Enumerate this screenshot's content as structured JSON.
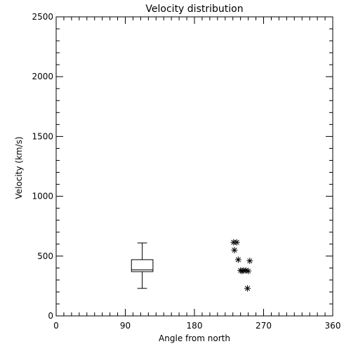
{
  "chart_data": {
    "type": "scatter",
    "title": "Velocity distribution",
    "xlabel": "Angle from north",
    "ylabel": "Velocity (km/s)",
    "xlim": [
      0,
      360
    ],
    "ylim": [
      0,
      2500
    ],
    "x_ticks": [
      0,
      90,
      180,
      270,
      360
    ],
    "y_ticks": [
      0,
      500,
      1000,
      1500,
      2000,
      2500
    ],
    "x_minor_step": 10,
    "y_minor_step": 100,
    "grid": false,
    "legend": "none",
    "color": "#000000",
    "boxplot": {
      "x": 112,
      "half_width_deg": 14,
      "min": 230,
      "q1": 370,
      "median": 385,
      "q3": 470,
      "max": 610
    },
    "points": [
      {
        "x": 231,
        "y": 615
      },
      {
        "x": 235,
        "y": 615
      },
      {
        "x": 232,
        "y": 550
      },
      {
        "x": 237,
        "y": 470
      },
      {
        "x": 252,
        "y": 460
      },
      {
        "x": 240,
        "y": 380
      },
      {
        "x": 244,
        "y": 380
      },
      {
        "x": 247,
        "y": 380
      },
      {
        "x": 250,
        "y": 375
      },
      {
        "x": 242,
        "y": 375
      },
      {
        "x": 249,
        "y": 230
      }
    ]
  }
}
